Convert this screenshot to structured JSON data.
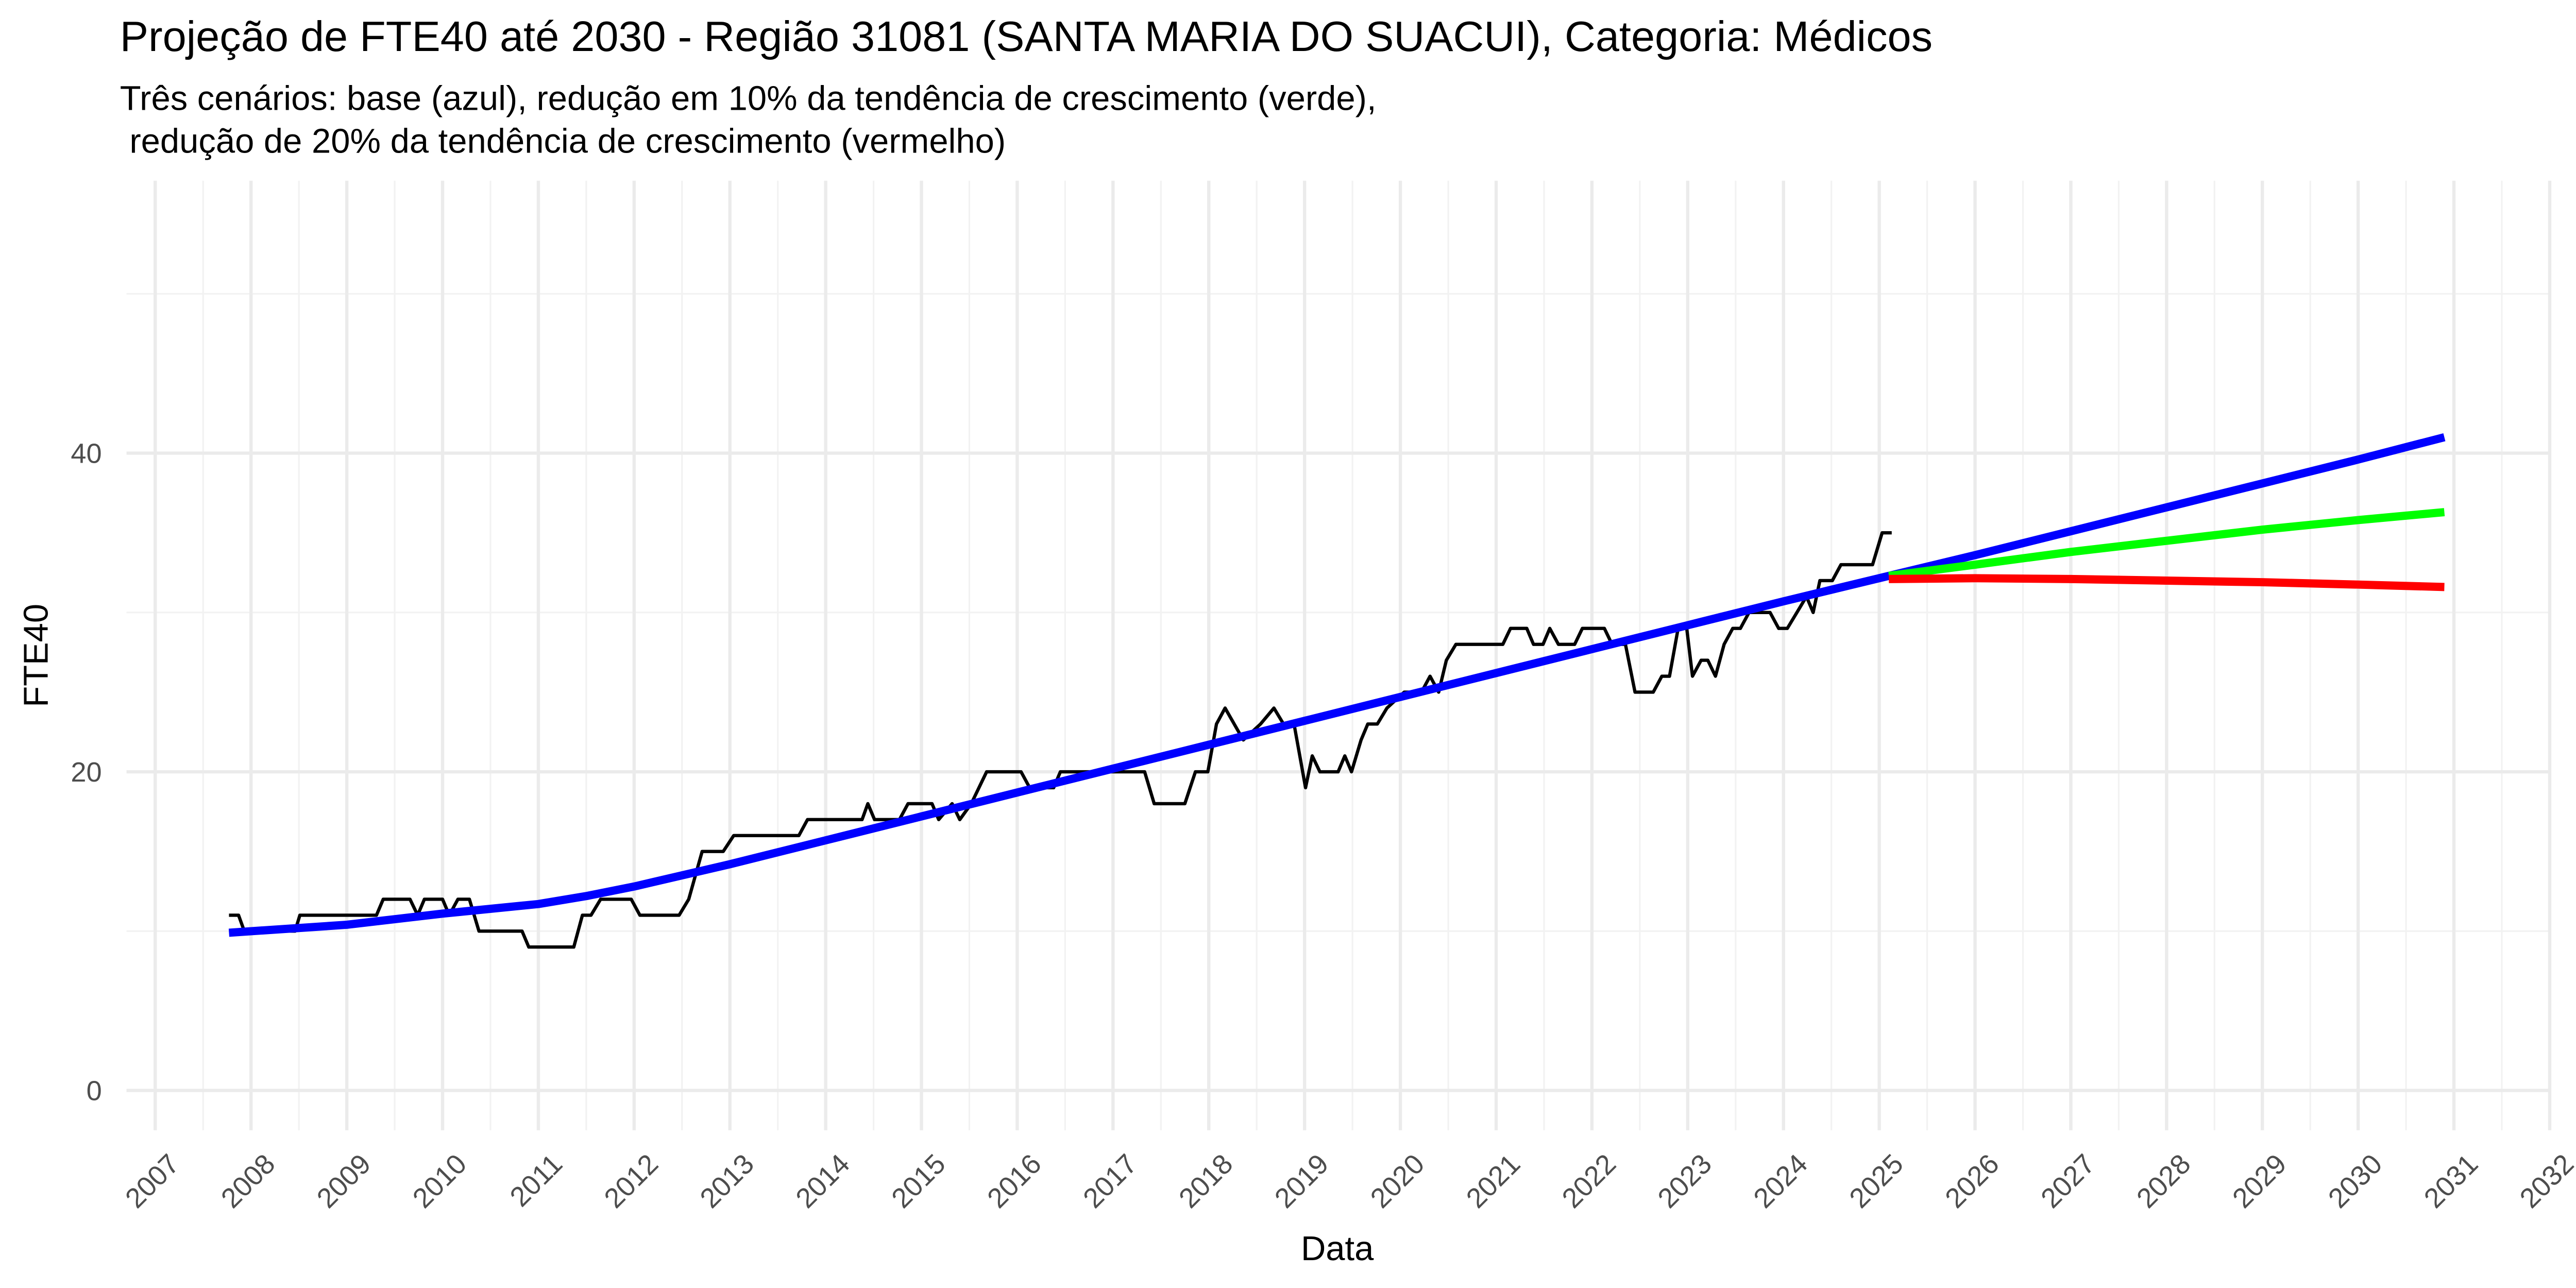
{
  "chart_data": {
    "type": "line",
    "title": "Projeção de FTE40 até 2030 - Região 31081 (SANTA MARIA DO SUACUI), Categoria: Médicos",
    "subtitle": [
      "Três cenários: base (azul), redução em 10% da tendência de crescimento (verde),",
      " redução de 20% da tendência de crescimento (vermelho)"
    ],
    "x_label": "Data",
    "y_label": "FTE40",
    "xlim": [
      2006.7,
      2032.0
    ],
    "ylim": [
      -2.5,
      57.1
    ],
    "xticks": [
      2007,
      2008,
      2009,
      2010,
      2011,
      2012,
      2013,
      2014,
      2015,
      2016,
      2017,
      2018,
      2019,
      2020,
      2021,
      2022,
      2023,
      2024,
      2025,
      2026,
      2027,
      2028,
      2029,
      2030,
      2031,
      2032
    ],
    "yticks": [
      0,
      20,
      40
    ],
    "grid": true,
    "series": [
      {
        "color": "#000000",
        "width": 2,
        "x": [
          2007.77,
          2007.87,
          2007.93,
          2008.46,
          2008.51,
          2009.31,
          2009.38,
          2009.66,
          2009.74,
          2009.81,
          2010.0,
          2010.07,
          2010.16,
          2010.28,
          2010.38,
          2010.83,
          2010.9,
          2011.37,
          2011.46,
          2011.55,
          2011.65,
          2011.97,
          2012.06,
          2012.47,
          2012.57,
          2012.71,
          2012.93,
          2013.04,
          2013.72,
          2013.81,
          2014.38,
          2014.44,
          2014.51,
          2014.77,
          2014.86,
          2015.11,
          2015.18,
          2015.32,
          2015.4,
          2015.52,
          2015.68,
          2016.04,
          2016.13,
          2016.38,
          2016.45,
          2017.33,
          2017.43,
          2017.75,
          2017.86,
          2017.99,
          2018.08,
          2018.17,
          2018.36,
          2018.54,
          2018.68,
          2018.78,
          2018.89,
          2019.01,
          2019.08,
          2019.16,
          2019.35,
          2019.42,
          2019.49,
          2019.59,
          2019.66,
          2019.76,
          2019.86,
          2020.04,
          2020.22,
          2020.31,
          2020.4,
          2020.48,
          2020.58,
          2021.07,
          2021.15,
          2021.32,
          2021.39,
          2021.49,
          2021.56,
          2021.65,
          2021.82,
          2021.9,
          2022.13,
          2022.21,
          2022.35,
          2022.45,
          2022.64,
          2022.73,
          2022.81,
          2022.9,
          2022.99,
          2023.05,
          2023.14,
          2023.21,
          2023.29,
          2023.38,
          2023.47,
          2023.55,
          2023.64,
          2023.86,
          2023.95,
          2024.04,
          2024.14,
          2024.24,
          2024.31,
          2024.38,
          2024.51,
          2024.6,
          2024.93,
          2025.03,
          2025.13
        ],
        "values": [
          11,
          11,
          10,
          10,
          11,
          11,
          12,
          12,
          11,
          12,
          12,
          11,
          12,
          12,
          10,
          10,
          9,
          9,
          11,
          11,
          12,
          12,
          11,
          11,
          12,
          15,
          15,
          16,
          16,
          17,
          17,
          18,
          17,
          17,
          18,
          18,
          17,
          18,
          17,
          18,
          20,
          20,
          19,
          19,
          20,
          20,
          18,
          18,
          20,
          20,
          23,
          24,
          22,
          23,
          24,
          23,
          23,
          19,
          21,
          20,
          20,
          21,
          20,
          22,
          23,
          23,
          24,
          25,
          25,
          26,
          25,
          27,
          28,
          28,
          29,
          29,
          28,
          28,
          29,
          28,
          28,
          29,
          29,
          28,
          28,
          25,
          25,
          26,
          26,
          29,
          29,
          26,
          27,
          27,
          26,
          28,
          29,
          29,
          30,
          30,
          29,
          29,
          30,
          31,
          30,
          32,
          32,
          33,
          33,
          35,
          35
        ]
      },
      {
        "color": "#0000ff",
        "width": 5,
        "x": [
          2007.77,
          2009,
          2010,
          2011,
          2011.5,
          2012,
          2013,
          2014,
          2015,
          2016,
          2017,
          2018,
          2019,
          2020,
          2021,
          2022,
          2023,
          2024,
          2025.1,
          2026,
          2027,
          2028,
          2029,
          2030,
          2030.9
        ],
        "values": [
          9.9,
          10.4,
          11.1,
          11.7,
          12.2,
          12.8,
          14.2,
          15.7,
          17.2,
          18.7,
          20.2,
          21.7,
          23.2,
          24.7,
          26.2,
          27.7,
          29.2,
          30.7,
          32.3,
          33.6,
          35.1,
          36.6,
          38.1,
          39.6,
          41.0
        ]
      },
      {
        "color": "#00ff00",
        "width": 5,
        "x": [
          2025.1,
          2026,
          2027,
          2028,
          2029,
          2030,
          2030.9
        ],
        "values": [
          32.3,
          33.0,
          33.8,
          34.5,
          35.2,
          35.8,
          36.3
        ]
      },
      {
        "color": "#ff0000",
        "width": 5,
        "x": [
          2025.1,
          2026,
          2027,
          2028,
          2029,
          2030,
          2030.9
        ],
        "values": [
          32.1,
          32.15,
          32.1,
          32.0,
          31.9,
          31.75,
          31.6
        ]
      }
    ]
  }
}
